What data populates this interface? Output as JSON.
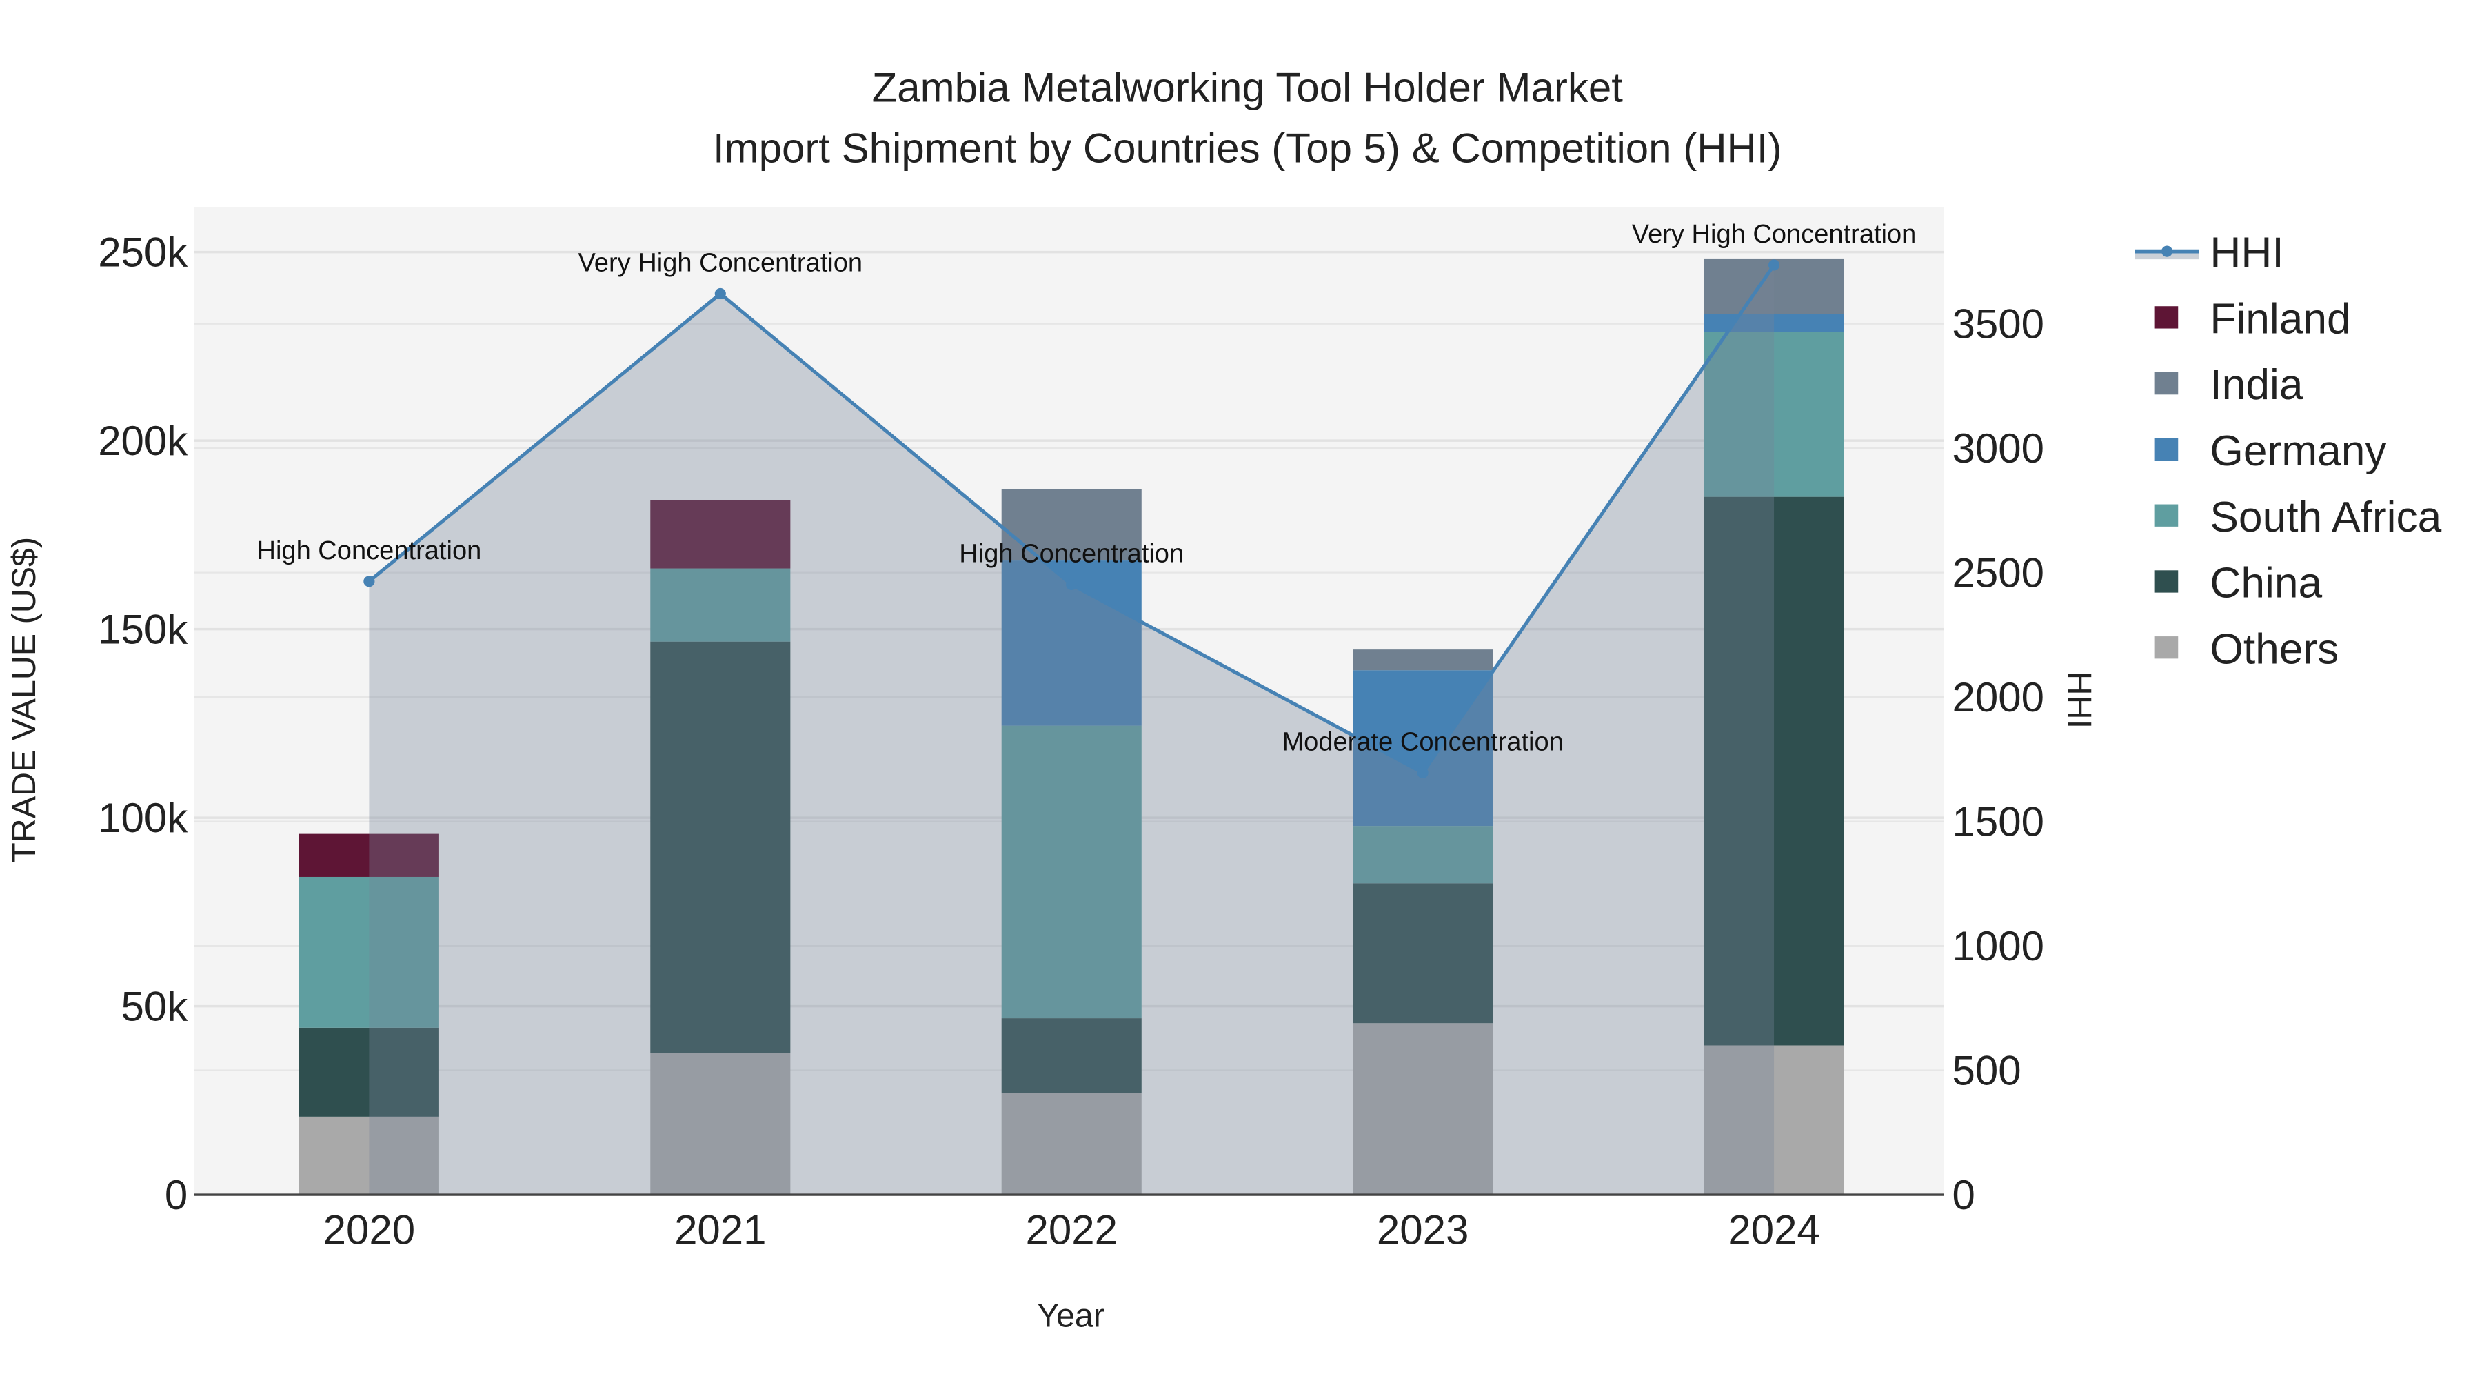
{
  "chart_data": {
    "type": "bar",
    "title": "Zambia Metalworking Tool Holder Market",
    "subtitle": "Import Shipment by Countries (Top 5) & Competition (HHI)",
    "xlabel": "Year",
    "ylabel": "TRADE VALUE (US$)",
    "y2label": "HHI",
    "categories": [
      "2020",
      "2021",
      "2022",
      "2023",
      "2024"
    ],
    "ylim": [
      0,
      262000
    ],
    "y_ticks": [
      0,
      50000,
      100000,
      150000,
      200000,
      250000
    ],
    "y_tick_labels": [
      "0",
      "50k",
      "100k",
      "150k",
      "200k",
      "250k"
    ],
    "y2lim": [
      0,
      3970
    ],
    "y2_ticks": [
      0,
      500,
      1000,
      1500,
      2000,
      2500,
      3000,
      3500
    ],
    "y2_tick_labels": [
      "0",
      "500",
      "1000",
      "1500",
      "2000",
      "2500",
      "3000",
      "3500"
    ],
    "grid": true,
    "legend_position": "right",
    "series": [
      {
        "name": "Others",
        "color": "#a9a9a9",
        "values": [
          20700,
          37500,
          27000,
          45500,
          39600
        ]
      },
      {
        "name": "China",
        "color": "#2f4f4f",
        "values": [
          23600,
          109200,
          19800,
          37100,
          145500
        ]
      },
      {
        "name": "South Africa",
        "color": "#5f9ea0",
        "values": [
          40000,
          19400,
          77600,
          15200,
          43800
        ]
      },
      {
        "name": "Germany",
        "color": "#4682b4",
        "values": [
          0,
          0,
          43800,
          41300,
          4700
        ]
      },
      {
        "name": "India",
        "color": "#708090",
        "values": [
          0,
          0,
          19000,
          5500,
          14700
        ]
      },
      {
        "name": "Finland",
        "color": "#5e1535",
        "values": [
          11400,
          18100,
          0,
          0,
          0
        ]
      }
    ],
    "hhi": {
      "name": "HHI",
      "color": "#4682b4",
      "values": [
        2465,
        3621,
        2452,
        1696,
        3736
      ],
      "annotations": [
        "High Concentration",
        "Very High Concentration",
        "High Concentration",
        "Moderate Concentration",
        "Very High Concentration"
      ]
    },
    "legend": [
      "HHI",
      "Finland",
      "India",
      "Germany",
      "South Africa",
      "China",
      "Others"
    ]
  }
}
